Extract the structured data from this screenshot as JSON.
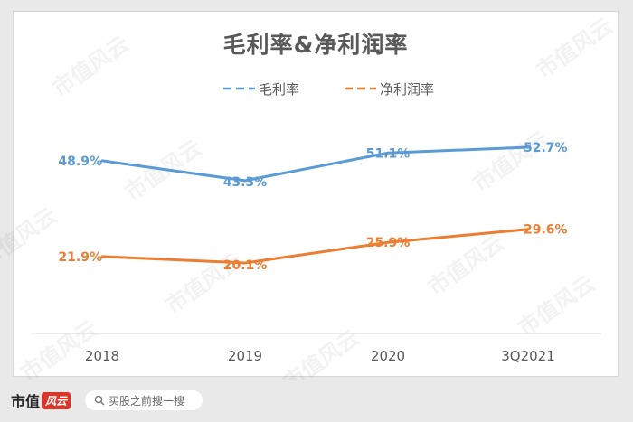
{
  "chart_data": {
    "type": "line",
    "title": "毛利率&净利润率",
    "categories": [
      "2018",
      "2019",
      "2020",
      "3Q2021"
    ],
    "series": [
      {
        "name": "毛利率",
        "color": "#5b9bd5",
        "values": [
          48.9,
          43.3,
          51.1,
          52.7
        ],
        "labels": [
          "48.9%",
          "43.3%",
          "51.1%",
          "52.7%"
        ]
      },
      {
        "name": "净利润率",
        "color": "#ed7d31",
        "values": [
          21.9,
          20.1,
          25.9,
          29.6
        ],
        "labels": [
          "21.9%",
          "20.1%",
          "25.9%",
          "29.6%"
        ]
      }
    ],
    "ylim": [
      0,
      70
    ],
    "legend": "top-center",
    "grid": false,
    "xlabel": "",
    "ylabel": ""
  },
  "watermark": "市值风云",
  "footer": {
    "brand_text": "市值",
    "brand_badge": "风云",
    "search_placeholder": "买股之前搜一搜"
  }
}
